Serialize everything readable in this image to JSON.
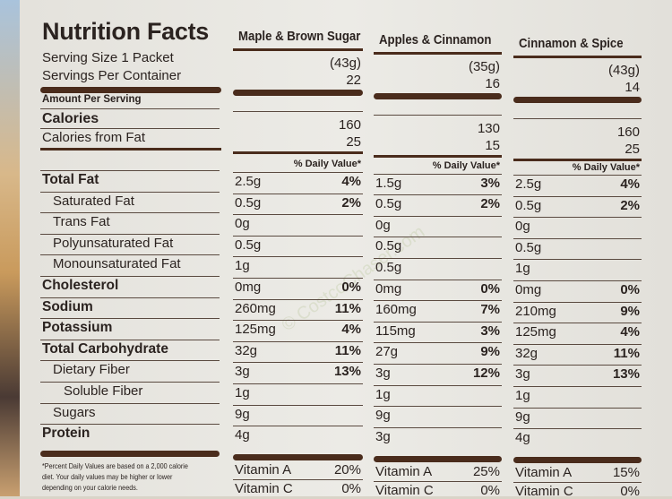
{
  "title": "Nutrition Facts",
  "serving_size_label": "Serving Size 1 Packet",
  "servings_per_container_label": "Servings Per Container",
  "amount_per_serving": "Amount Per Serving",
  "calories_label": "Calories",
  "calories_from_fat_label": "Calories from Fat",
  "daily_value_header": "% Daily Value*",
  "watermark": "© CostcoChaser.com",
  "flavors": [
    {
      "name": "Maple & Brown Sugar",
      "serving_size": "(43g)",
      "servings": "22",
      "calories": "160",
      "calories_from_fat": "25"
    },
    {
      "name": "Apples & Cinnamon",
      "serving_size": "(35g)",
      "servings": "16",
      "calories": "130",
      "calories_from_fat": "15"
    },
    {
      "name": "Cinnamon & Spice",
      "serving_size": "(43g)",
      "servings": "14",
      "calories": "160",
      "calories_from_fat": "25"
    }
  ],
  "nutrients": [
    {
      "label": "Total Fat",
      "bold": true,
      "indent": 0,
      "values": [
        [
          "2.5g",
          "4%"
        ],
        [
          "1.5g",
          "3%"
        ],
        [
          "2.5g",
          "4%"
        ]
      ]
    },
    {
      "label": "Saturated Fat",
      "bold": false,
      "indent": 1,
      "values": [
        [
          "0.5g",
          "2%"
        ],
        [
          "0.5g",
          "2%"
        ],
        [
          "0.5g",
          "2%"
        ]
      ]
    },
    {
      "label": "Trans Fat",
      "bold": false,
      "indent": 1,
      "values": [
        [
          "0g",
          ""
        ],
        [
          "0g",
          ""
        ],
        [
          "0g",
          ""
        ]
      ]
    },
    {
      "label": "Polyunsaturated Fat",
      "bold": false,
      "indent": 1,
      "values": [
        [
          "0.5g",
          ""
        ],
        [
          "0.5g",
          ""
        ],
        [
          "0.5g",
          ""
        ]
      ]
    },
    {
      "label": "Monounsaturated Fat",
      "bold": false,
      "indent": 1,
      "values": [
        [
          "1g",
          ""
        ],
        [
          "0.5g",
          ""
        ],
        [
          "1g",
          ""
        ]
      ]
    },
    {
      "label": "Cholesterol",
      "bold": true,
      "indent": 0,
      "values": [
        [
          "0mg",
          "0%"
        ],
        [
          "0mg",
          "0%"
        ],
        [
          "0mg",
          "0%"
        ]
      ]
    },
    {
      "label": "Sodium",
      "bold": true,
      "indent": 0,
      "values": [
        [
          "260mg",
          "11%"
        ],
        [
          "160mg",
          "7%"
        ],
        [
          "210mg",
          "9%"
        ]
      ]
    },
    {
      "label": "Potassium",
      "bold": true,
      "indent": 0,
      "values": [
        [
          "125mg",
          "4%"
        ],
        [
          "115mg",
          "3%"
        ],
        [
          "125mg",
          "4%"
        ]
      ]
    },
    {
      "label": "Total Carbohydrate",
      "bold": true,
      "indent": 0,
      "values": [
        [
          "32g",
          "11%"
        ],
        [
          "27g",
          "9%"
        ],
        [
          "32g",
          "11%"
        ]
      ]
    },
    {
      "label": "Dietary Fiber",
      "bold": false,
      "indent": 1,
      "values": [
        [
          "3g",
          "13%"
        ],
        [
          "3g",
          "12%"
        ],
        [
          "3g",
          "13%"
        ]
      ]
    },
    {
      "label": "Soluble Fiber",
      "bold": false,
      "indent": 2,
      "values": [
        [
          "1g",
          ""
        ],
        [
          "1g",
          ""
        ],
        [
          "1g",
          ""
        ]
      ]
    },
    {
      "label": "Sugars",
      "bold": false,
      "indent": 1,
      "values": [
        [
          "9g",
          ""
        ],
        [
          "9g",
          ""
        ],
        [
          "9g",
          ""
        ]
      ]
    },
    {
      "label": "Protein",
      "bold": true,
      "indent": 0,
      "values": [
        [
          "4g",
          ""
        ],
        [
          "3g",
          ""
        ],
        [
          "4g",
          ""
        ]
      ]
    }
  ],
  "vitamins": [
    {
      "label": "Vitamin A",
      "values": [
        "20%",
        "25%",
        "15%"
      ]
    },
    {
      "label": "Vitamin C",
      "values": [
        "0%",
        "0%",
        "0%"
      ]
    }
  ],
  "footnote": "*Percent Daily Values are based on a 2,000 calorie diet. Your daily values may be higher or lower depending on your calorie needs."
}
